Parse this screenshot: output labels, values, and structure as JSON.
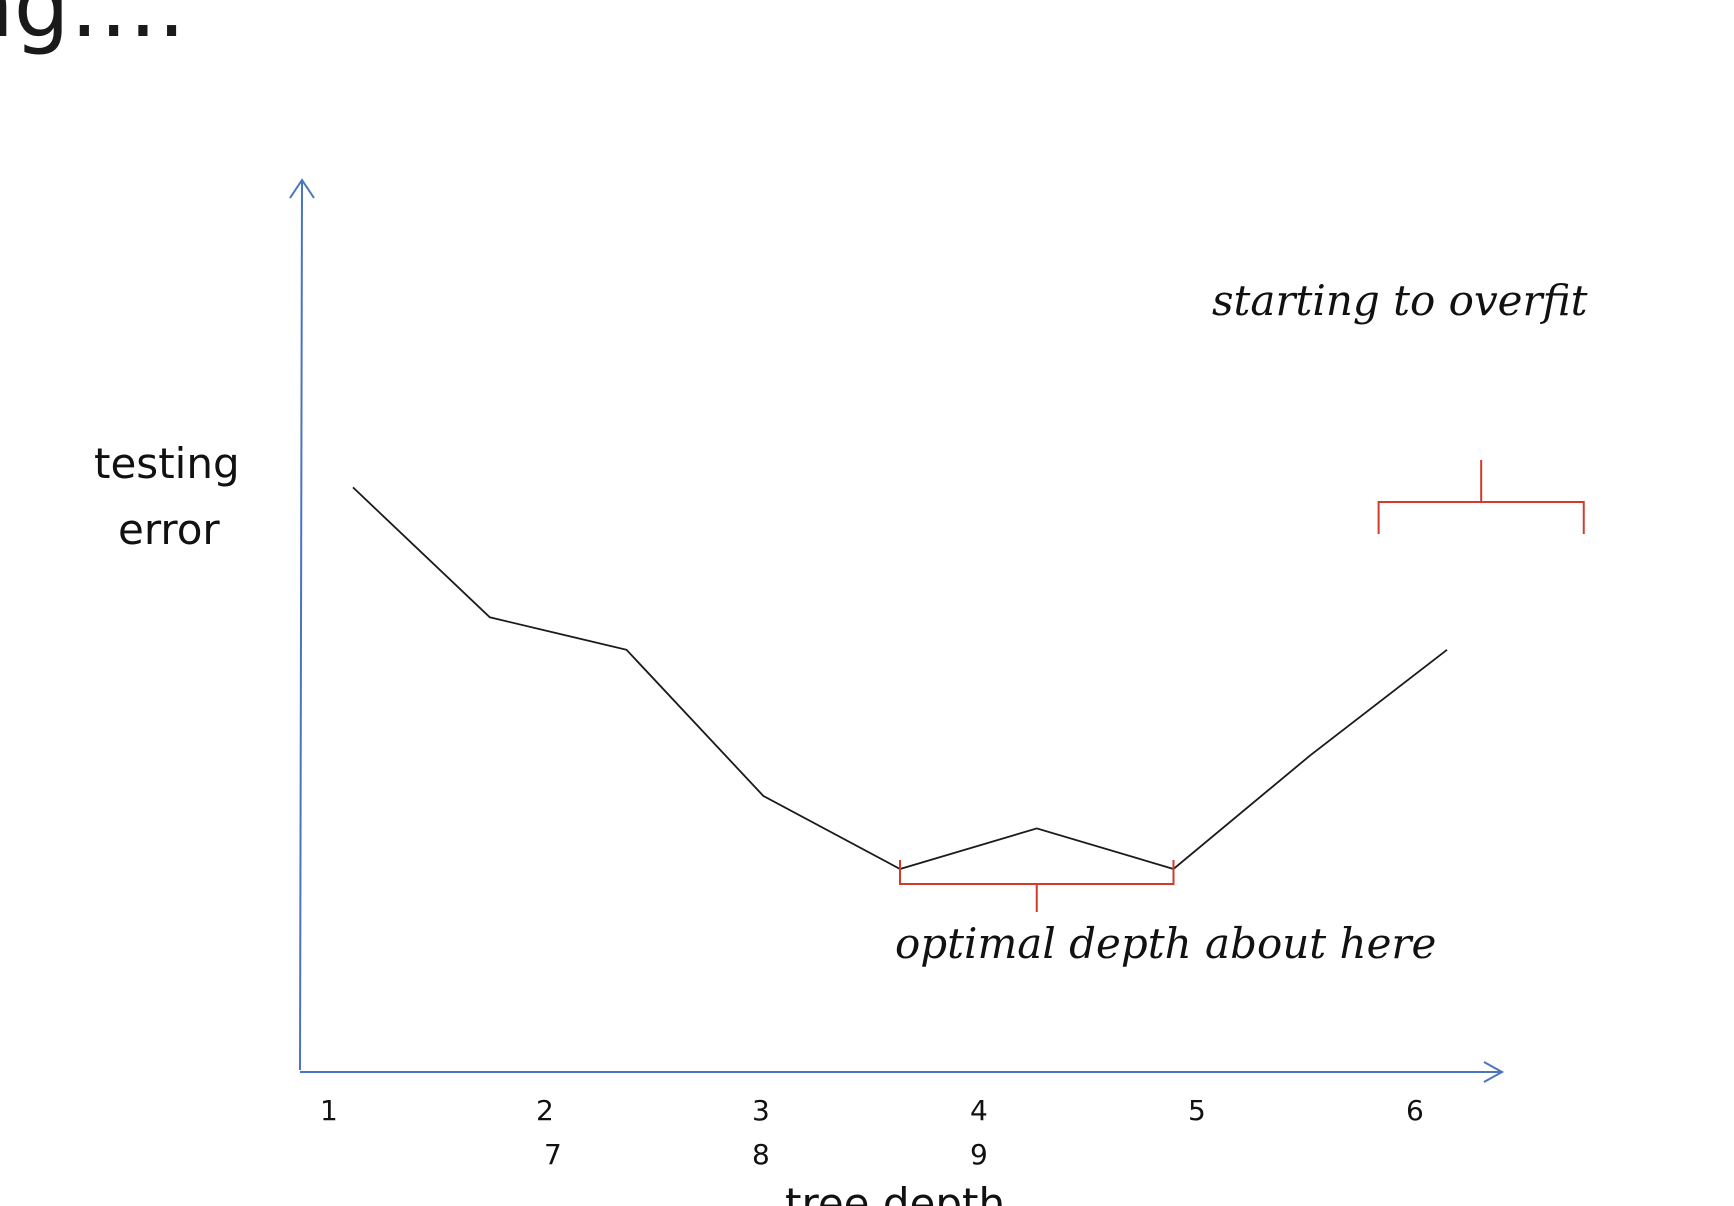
{
  "slide": {
    "title": "ng…."
  },
  "chart_data": {
    "type": "line",
    "title": "",
    "ylabel_lines": [
      "testing",
      "error"
    ],
    "xlabel": "tree depth",
    "x_tick_rows": [
      [
        "1",
        "2",
        "3",
        "4",
        "5",
        "6"
      ],
      [
        "7",
        "8",
        "9"
      ]
    ],
    "series": [
      {
        "x": [
          1,
          2,
          3,
          4,
          5,
          6,
          7,
          8,
          9
        ],
        "values": [
          0.72,
          0.56,
          0.52,
          0.34,
          0.25,
          0.3,
          0.25,
          0.39,
          0.52
        ]
      }
    ],
    "ylim": [
      0,
      1
    ],
    "grid": false,
    "legend": "none",
    "colors": {
      "axis": "#4a74c2",
      "line": "#1a1a1a",
      "brace": "#d33a2c"
    },
    "annotations": [
      {
        "text": "optimal depth about here",
        "bracket_from": 5,
        "bracket_to": 7
      },
      {
        "text": "starting to overfit",
        "bracket_from": 8.5,
        "bracket_to": 10
      }
    ]
  }
}
